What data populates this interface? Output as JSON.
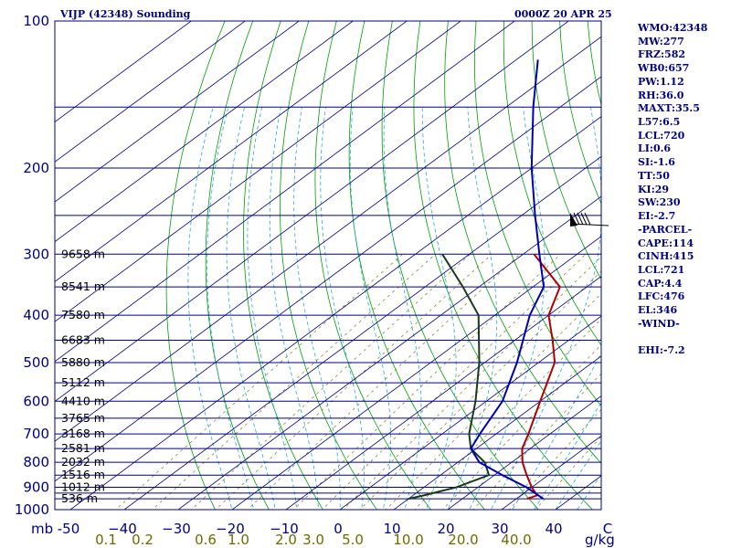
{
  "header": {
    "station_title": "VIJP (42348) Sounding",
    "valid_time": "0000Z 20 APR 25"
  },
  "stats": [
    "WMO:42348",
    "MW:277",
    "FRZ:582",
    "WB0:657",
    "PW:1.12",
    "RH:36.0",
    "MAXT:35.5",
    "L57:6.5",
    "LCL:720",
    "LI:0.6",
    "SI:-1.6",
    "TT:50",
    "KI:29",
    "SW:230",
    "EI:-2.7",
    "-PARCEL-",
    "CAPE:114",
    "CINH:415",
    "LCL:721",
    "CAP:4.4",
    "LFC:476",
    "EL:346",
    "-WIND-",
    "",
    "EHI:-7.2"
  ],
  "units": {
    "pressure": "mb",
    "mixing_ratio": "g/kg"
  },
  "chart_data": {
    "type": "line",
    "chart_kind": "skew-T log-p sounding",
    "pressure_axis": {
      "scale": "log",
      "range": [
        1000,
        100
      ],
      "ticks": [
        100,
        200,
        300,
        400,
        500,
        600,
        700,
        800,
        900,
        1000
      ],
      "tick_labels": [
        "100",
        "200",
        "300",
        "400",
        "500",
        "600",
        "700",
        "800",
        "900",
        "1000"
      ]
    },
    "temperature_axis": {
      "skewed": true,
      "range": [
        -50,
        50
      ],
      "ticks": [
        -50,
        -40,
        -30,
        -20,
        -10,
        0,
        10,
        20,
        30,
        40,
        50
      ],
      "tick_labels": [
        "-50",
        "−40",
        "−30",
        "−20",
        "−10",
        "0",
        "10",
        "20",
        "30",
        "40",
        "C"
      ]
    },
    "mixing_ratio_axis": {
      "values": [
        0.1,
        0.2,
        0.6,
        1.0,
        2.0,
        3.0,
        5.0,
        10.0,
        20.0,
        40.0
      ],
      "tick_labels": [
        "0.1",
        "0.2",
        "0.6",
        "1.0",
        "2.0",
        "3.0",
        "5.0",
        "10.0",
        "20.0",
        "40.0"
      ]
    },
    "isobars_mb": [
      100,
      150,
      200,
      250,
      300,
      350,
      400,
      450,
      500,
      550,
      600,
      650,
      700,
      750,
      800,
      850,
      900,
      925,
      950,
      1000
    ],
    "height_labels": [
      {
        "p": 300,
        "text": "9658 m"
      },
      {
        "p": 350,
        "text": "8541 m"
      },
      {
        "p": 400,
        "text": "7580 m"
      },
      {
        "p": 450,
        "text": "6683 m"
      },
      {
        "p": 500,
        "text": "5880 m"
      },
      {
        "p": 550,
        "text": "5112 m"
      },
      {
        "p": 600,
        "text": "4410 m"
      },
      {
        "p": 650,
        "text": "3765 m"
      },
      {
        "p": 700,
        "text": "3168 m"
      },
      {
        "p": 750,
        "text": "2581 m"
      },
      {
        "p": 800,
        "text": "2032 m"
      },
      {
        "p": 850,
        "text": "1516 m"
      },
      {
        "p": 900,
        "text": "1012 m"
      },
      {
        "p": 950,
        "text": "536 m"
      }
    ],
    "series": [
      {
        "color": "#b00000",
        "points": [
          [
            950,
            32
          ],
          [
            935,
            33
          ],
          [
            900,
            30
          ],
          [
            850,
            26
          ],
          [
            800,
            22
          ],
          [
            750,
            18.5
          ],
          [
            700,
            16
          ],
          [
            600,
            10
          ],
          [
            500,
            3
          ],
          [
            450,
            -3
          ],
          [
            400,
            -10
          ],
          [
            350,
            -15
          ],
          [
            300,
            -28
          ]
        ]
      },
      {
        "color": "#1a3a1a",
        "points": [
          [
            950,
            10
          ],
          [
            935,
            12
          ],
          [
            900,
            16
          ],
          [
            850,
            19
          ],
          [
            800,
            15
          ],
          [
            750,
            9
          ],
          [
            700,
            5
          ],
          [
            600,
            -2
          ],
          [
            500,
            -11
          ],
          [
            400,
            -23
          ],
          [
            350,
            -33
          ],
          [
            300,
            -45
          ]
        ]
      },
      {
        "color": "#0000b0",
        "points": [
          [
            950,
            35
          ],
          [
            900,
            29
          ],
          [
            850,
            21.5
          ],
          [
            800,
            14
          ],
          [
            750,
            9
          ],
          [
            700,
            7
          ],
          [
            600,
            3
          ],
          [
            500,
            -4
          ],
          [
            400,
            -13.5
          ],
          [
            350,
            -18
          ],
          [
            300,
            -27
          ],
          [
            250,
            -37.5
          ],
          [
            200,
            -50
          ],
          [
            150,
            -65
          ],
          [
            120,
            -76
          ]
        ]
      }
    ],
    "wind_barb": {
      "p": 260,
      "direction_deg": 290,
      "speed_kt": 45
    }
  }
}
